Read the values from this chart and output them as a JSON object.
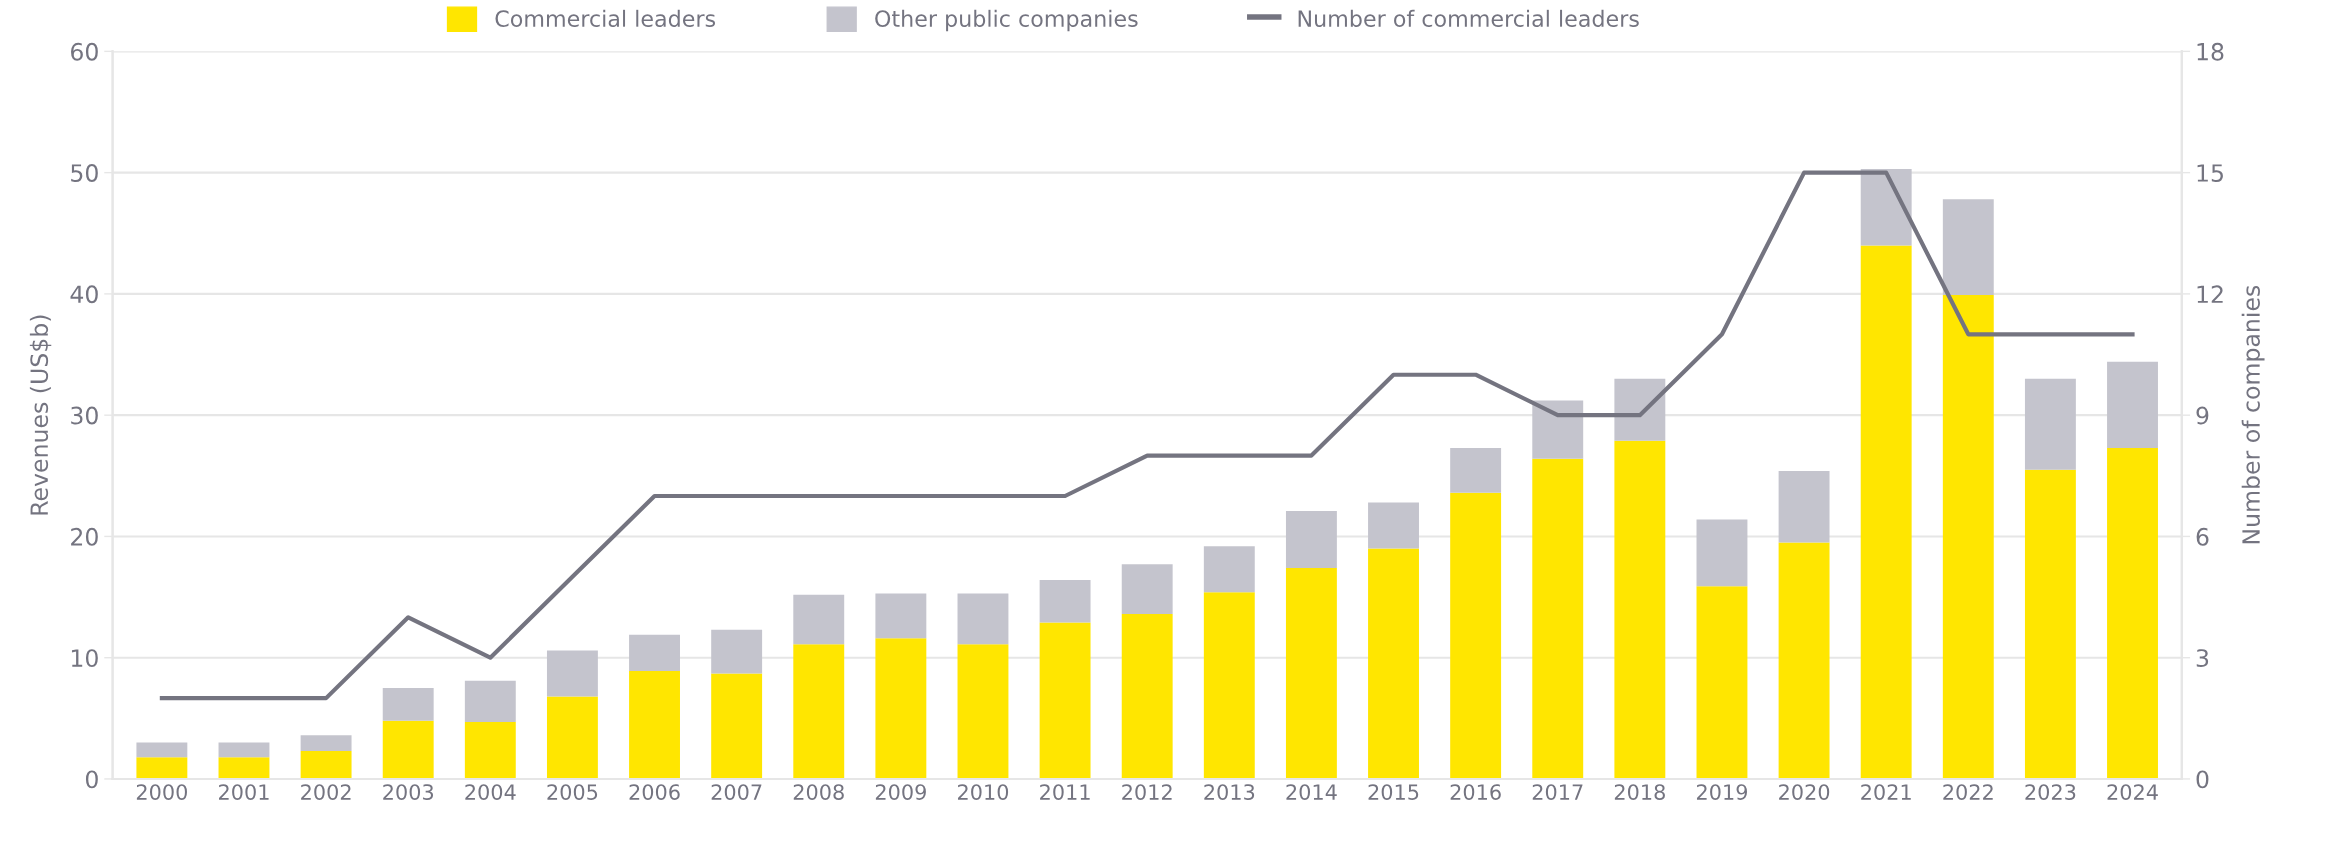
{
  "chart_data": {
    "type": "bar",
    "stacked": true,
    "ylabel": "Revenues (US$b)",
    "y2label": "Number of companies",
    "categories": [
      "2000",
      "2001",
      "2002",
      "2003",
      "2004",
      "2005",
      "2006",
      "2007",
      "2008",
      "2009",
      "2010",
      "2011",
      "2012",
      "2013",
      "2014",
      "2015",
      "2016",
      "2017",
      "2018",
      "2019",
      "2020",
      "2021",
      "2022",
      "2023",
      "2024"
    ],
    "series": [
      {
        "name": "Commercial leaders",
        "color": "#ffe600",
        "values": [
          1.8,
          1.8,
          2.3,
          4.8,
          4.7,
          6.8,
          8.9,
          8.7,
          11.1,
          11.6,
          11.1,
          12.9,
          13.6,
          15.4,
          17.4,
          19.0,
          23.6,
          26.4,
          27.9,
          15.9,
          19.5,
          44.0,
          39.9,
          25.5,
          27.3
        ]
      },
      {
        "name": "Other public companies",
        "color": "#c4c4cd",
        "values": [
          1.2,
          1.2,
          1.3,
          2.7,
          3.4,
          3.8,
          3.0,
          3.6,
          4.1,
          3.7,
          4.2,
          3.5,
          4.1,
          3.8,
          4.7,
          3.8,
          3.7,
          4.8,
          5.1,
          5.5,
          5.9,
          6.3,
          7.9,
          7.5,
          7.1
        ]
      },
      {
        "name": "Number of commercial leaders",
        "type": "line",
        "axis": "y2",
        "color": "#747480",
        "values": [
          2,
          2,
          2,
          4,
          3,
          5,
          7,
          7,
          7,
          7,
          7,
          7,
          8,
          8,
          8,
          10,
          10,
          9,
          9,
          11,
          15,
          15,
          11,
          11,
          11
        ]
      }
    ],
    "ylim": [
      0,
      60
    ],
    "yticks": [
      0,
      10,
      20,
      30,
      40,
      50,
      60
    ],
    "y2lim": [
      0,
      18
    ],
    "y2ticks": [
      0,
      3,
      6,
      9,
      12,
      15,
      18
    ],
    "grid": "y",
    "legend": "top",
    "marker": "none",
    "line_style": "solid"
  }
}
